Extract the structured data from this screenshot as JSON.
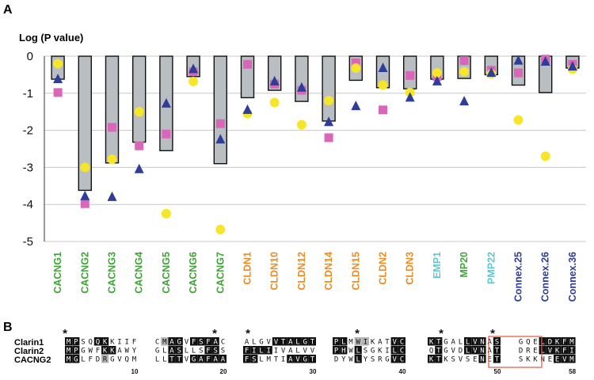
{
  "panel_a": {
    "letter": "A",
    "ylabel": "Log (P value)",
    "chart_data": {
      "type": "bar",
      "ylabel": "Log (P value)",
      "ylim": [
        -5,
        0
      ],
      "y_ticks": [
        "0",
        "-1",
        "-2",
        "-3",
        "-4",
        "-5"
      ],
      "grid": "horizontal",
      "categories": [
        "CACNG1",
        "CACNG2",
        "CACNG3",
        "CACNG4",
        "CACNG5",
        "CACNG6",
        "CACNG7",
        "CLDN1",
        "CLDN10",
        "CLDN12",
        "CLDN14",
        "CLDN15",
        "CLDN2",
        "CLDN3",
        "EMP1",
        "MP20",
        "PMP22",
        "Connex.25",
        "Connex.26",
        "Connex.36"
      ],
      "category_colors": [
        "#3fa535",
        "#3fa535",
        "#3fa535",
        "#3fa535",
        "#3fa535",
        "#3fa535",
        "#3fa535",
        "#f08a1e",
        "#f08a1e",
        "#f08a1e",
        "#f08a1e",
        "#f08a1e",
        "#f08a1e",
        "#f08a1e",
        "#5ac8d2",
        "#3fa535",
        "#5ac8d2",
        "#2e3c9a",
        "#2e3c9a",
        "#2e3c9a"
      ],
      "bar_color": "#b9bec3",
      "values": [
        -0.62,
        -3.62,
        -2.88,
        -2.32,
        -2.55,
        -0.55,
        -2.9,
        -1.12,
        -0.92,
        -1.22,
        -1.75,
        -0.65,
        -0.85,
        -0.88,
        -0.62,
        -0.6,
        -0.5,
        -0.78,
        -0.98,
        -0.32
      ],
      "series": [
        {
          "marker": "square",
          "color": "#d966b8",
          "values": [
            -0.98,
            -3.98,
            -1.92,
            -2.42,
            -2.1,
            -0.42,
            -1.82,
            -0.22,
            -0.75,
            -0.92,
            -2.2,
            -0.18,
            -1.45,
            -0.52,
            -0.55,
            -0.12,
            -0.38,
            -0.45,
            -0.08,
            -0.22
          ]
        },
        {
          "marker": "circle",
          "color": "#f7e52a",
          "values": [
            -0.2,
            -3.0,
            -2.78,
            -1.5,
            -4.25,
            -0.68,
            -4.68,
            -1.55,
            -1.25,
            -1.85,
            -1.2,
            -0.32,
            -0.78,
            -0.98,
            -0.45,
            -0.42,
            -0.48,
            -1.72,
            -2.7,
            -0.35
          ]
        },
        {
          "marker": "triangle",
          "color": "#2e3c9a",
          "values": [
            -0.62,
            -3.78,
            -3.8,
            -3.05,
            -1.28,
            -0.35,
            -2.25,
            -1.45,
            -0.68,
            -0.85,
            -1.78,
            -1.35,
            -0.32,
            -1.12,
            -0.68,
            -1.22,
            -0.45,
            -0.12,
            -0.15,
            -0.28
          ]
        }
      ]
    }
  },
  "panel_b": {
    "letter": "B",
    "rows": [
      "Clarin1",
      "Clarin2",
      "CACNG2"
    ],
    "blocks": [
      {
        "seqs": [
          "MPSQQKKIIF",
          "MPGWFKKAWY",
          "MGLFDRGVQM"
        ],
        "number": "10",
        "shade": [
          "bbwwbbwwww",
          "bbwwwbbwww",
          "bbwwwgwwww"
        ]
      },
      {
        "seqs": [
          "CMAGVFSFAC",
          "GLASLLSFSS",
          "LLTTVGAFAA"
        ],
        "number": "20",
        "shade": [
          "wgbbwbbbbw",
          "wwbbwwwbbw",
          "wwbbwbbbbb"
        ]
      },
      {
        "seqs": [
          "ALGVVTALGT",
          "FILIIVALVV",
          "FSLMTIAVGT"
        ],
        "number": "30",
        "shade": [
          "wwwwbbbbbb",
          "bbbbwwwwww",
          "bbwwwwbbbb"
        ]
      },
      {
        "seqs": [
          "PLMWIKATVC",
          "PHWLSGKILC",
          "DYWLYSRGVC"
        ],
        "number": "40",
        "shade": [
          "bbwggwwwbb",
          "bbwbwwwwbb",
          "wwwbwwwwbb"
        ]
      },
      {
        "seqs": [
          "KTGALLVNAS",
          "QTGVDLVNAT",
          "KTKSVSENET"
        ],
        "number": "50",
        "shade": [
          "bbwwwbbbwb",
          "wbwwwbbbwb",
          "bbwwwwwbwb"
        ]
      },
      {
        "seqs": [
          "GQELDKFM",
          "DRELVKFI",
          "SKKNEEVM"
        ],
        "number": "58",
        "shade": [
          "wwwbbbbb",
          "wwwbbbbb",
          "wwwwwbbb"
        ]
      }
    ],
    "stars": [
      "*",
      "*",
      "*",
      "*",
      "*",
      "*"
    ]
  }
}
